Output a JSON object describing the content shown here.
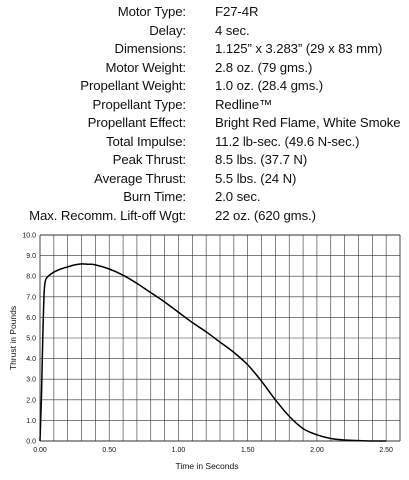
{
  "specs": [
    {
      "label": "Motor Type:",
      "value": "F27-4R"
    },
    {
      "label": "Delay:",
      "value": "4 sec."
    },
    {
      "label": "Dimensions:",
      "value": "1.125” x 3.283” (29 x 83 mm)"
    },
    {
      "label": "Motor Weight:",
      "value": "2.8 oz. (79 gms.)"
    },
    {
      "label": "Propellant Weight:",
      "value": "1.0 oz. (28.4 gms.)"
    },
    {
      "label": "Propellant Type:",
      "value": "Redline™"
    },
    {
      "label": "Propellant Effect:",
      "value": "Bright Red Flame, White Smoke"
    },
    {
      "label": "Total Impulse:",
      "value": "11.2 lb-sec. (49.6 N-sec.)"
    },
    {
      "label": "Peak Thrust:",
      "value": "8.5 lbs. (37.7 N)"
    },
    {
      "label": "Average Thrust:",
      "value": "5.5 lbs. (24 N)"
    },
    {
      "label": "Burn Time:",
      "value": "2.0 sec."
    },
    {
      "label": "Max. Recomm. Lift-off Wgt:",
      "value": "22 oz. (620 gms.)"
    }
  ],
  "chart_data": {
    "type": "line",
    "title": "",
    "xlabel": "Time in Seconds",
    "ylabel": "Thrust in Pounds",
    "xlim": [
      0,
      2.6
    ],
    "ylim": [
      0,
      10
    ],
    "x_ticks": [
      "0.00",
      "0.50",
      "1.00",
      "1.50",
      "2.00",
      "2.50"
    ],
    "y_ticks": [
      "0.0",
      "1.0",
      "2.0",
      "3.0",
      "4.0",
      "5.0",
      "6.0",
      "7.0",
      "8.0",
      "9.0",
      "10.0"
    ],
    "grid": true,
    "line_color": "#000000",
    "series": [
      {
        "x": [
          0.0,
          0.01,
          0.02,
          0.03,
          0.04,
          0.06,
          0.1,
          0.15,
          0.2,
          0.25,
          0.3,
          0.35,
          0.4,
          0.5,
          0.6,
          0.7,
          0.8,
          0.9,
          1.0,
          1.1,
          1.2,
          1.3,
          1.4,
          1.5,
          1.6,
          1.7,
          1.8,
          1.9,
          2.0,
          2.1,
          2.2,
          2.3,
          2.4,
          2.5
        ],
        "y": [
          0.0,
          2.0,
          5.0,
          7.2,
          7.8,
          8.0,
          8.2,
          8.35,
          8.45,
          8.55,
          8.6,
          8.58,
          8.55,
          8.35,
          8.05,
          7.65,
          7.2,
          6.75,
          6.25,
          5.75,
          5.3,
          4.8,
          4.3,
          3.7,
          2.9,
          2.0,
          1.2,
          0.6,
          0.3,
          0.12,
          0.05,
          0.02,
          0.0,
          0.0
        ]
      }
    ]
  }
}
